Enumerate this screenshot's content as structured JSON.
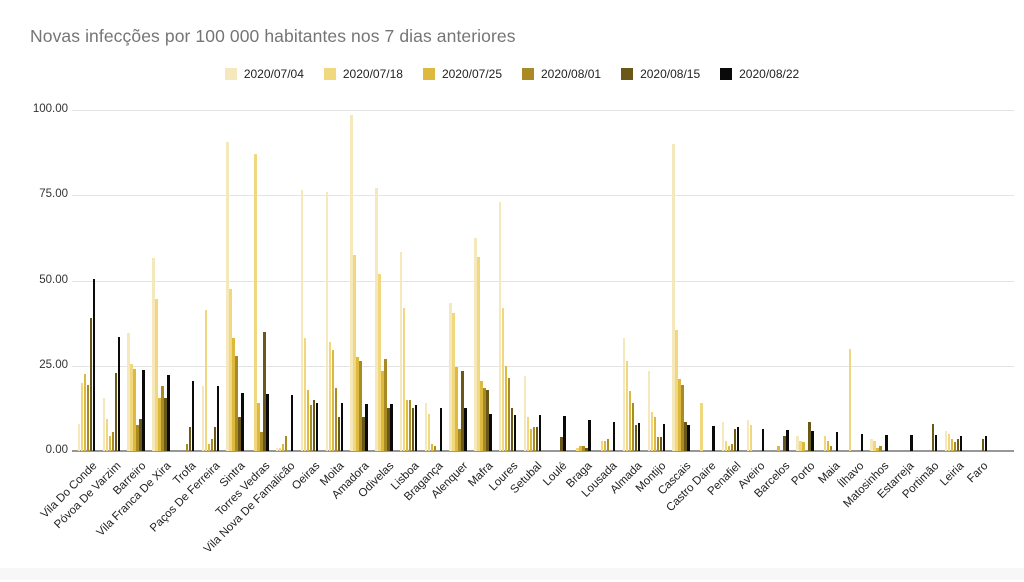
{
  "title": "Novas infecções por 100 000 habitantes nos 7 dias anteriores",
  "y_axis": {
    "ticks": [
      "0.00",
      "25.00",
      "50.00",
      "75.00",
      "100.00"
    ],
    "tick_values": [
      0,
      25,
      50,
      75,
      100
    ]
  },
  "chart_data": {
    "type": "bar",
    "title": "Novas infecções por 100 000 habitantes nos 7 dias anteriores",
    "xlabel": "",
    "ylabel": "",
    "ylim": [
      0,
      100
    ],
    "grid": true,
    "legend_position": "top",
    "categories": [
      "Vila Do Conde",
      "Póvoa De Varzim",
      "Barreiro",
      "Vila Franca De Xira",
      "Trofa",
      "Paços De Ferreira",
      "Sintra",
      "Torres Vedras",
      "Vila Nova De Famalicão",
      "Oeiras",
      "Moita",
      "Amadora",
      "Odivelas",
      "Lisboa",
      "Bragança",
      "Alenquer",
      "Mafra",
      "Loures",
      "Setubal",
      "Loulé",
      "Braga",
      "Lousada",
      "Almada",
      "Montijo",
      "Cascais",
      "Castro Daire",
      "Penafiel",
      "Aveiro",
      "Barcelos",
      "Porto",
      "Maia",
      "Ílhavo",
      "Matosinhos",
      "Estarreja",
      "Portimão",
      "Leiria",
      "Faro"
    ],
    "series": [
      {
        "name": "2020/07/04",
        "color": "#f6e8bd",
        "values": [
          8,
          15.5,
          34.5,
          56.5,
          0,
          19,
          90.5,
          0,
          1,
          76.5,
          76,
          98.5,
          77,
          58.5,
          14,
          43.5,
          62.5,
          73,
          22,
          0,
          0,
          0,
          33,
          23.5,
          90,
          0,
          8.5,
          9,
          0,
          4.5,
          0,
          0,
          3.5,
          0,
          0,
          6,
          0
        ]
      },
      {
        "name": "2020/07/18",
        "color": "#f1d87f",
        "values": [
          20,
          9.5,
          25.5,
          44.5,
          0,
          41.5,
          47.5,
          87,
          1,
          33,
          32,
          57.5,
          52,
          42,
          11,
          40.5,
          57,
          42,
          10,
          0,
          1,
          3,
          26.5,
          11.5,
          35.5,
          14,
          3,
          7.5,
          0,
          3,
          4.5,
          30,
          3,
          0,
          0,
          5,
          0
        ]
      },
      {
        "name": "2020/07/25",
        "color": "#ddb93f",
        "values": [
          22.5,
          4.5,
          24,
          15.5,
          0,
          2,
          33,
          14,
          2,
          18,
          29.5,
          27.5,
          23.5,
          15,
          2,
          24.5,
          20.5,
          25,
          6.5,
          0,
          1.5,
          3,
          17.5,
          10,
          21,
          0,
          1.5,
          0,
          1.5,
          2.5,
          3,
          0,
          1,
          0,
          0,
          3.5,
          0
        ]
      },
      {
        "name": "2020/08/01",
        "color": "#a98b25",
        "values": [
          19.5,
          5.5,
          7.5,
          19,
          2,
          3.5,
          28,
          5.5,
          4.5,
          13.5,
          18.5,
          26.5,
          27,
          15,
          1.5,
          6.5,
          18.5,
          21.5,
          7,
          0,
          1.5,
          3.5,
          14,
          4,
          19.5,
          0,
          2,
          0,
          0,
          0,
          1.5,
          0,
          1.5,
          0,
          0,
          2.5,
          0
        ]
      },
      {
        "name": "2020/08/15",
        "color": "#695818",
        "values": [
          39,
          23,
          9.5,
          15.5,
          7,
          7,
          10,
          35,
          0,
          15,
          10,
          10,
          12.5,
          12.5,
          0,
          23.5,
          18,
          12.5,
          7,
          4,
          1,
          0,
          7.5,
          4,
          8.5,
          0,
          6.5,
          0,
          4.5,
          8.5,
          0,
          0,
          0,
          0,
          8,
          3.5,
          3.5
        ]
      },
      {
        "name": "2020/08/22",
        "color": "#0a0a0a",
        "values": [
          50.5,
          33.4,
          23.8,
          22.3,
          20.5,
          19,
          16.9,
          16.6,
          16.4,
          14.2,
          14.1,
          13.9,
          13.8,
          13.6,
          12.6,
          12.5,
          11,
          10.6,
          10.5,
          10.4,
          9,
          8.5,
          8.2,
          7.9,
          7.6,
          7.2,
          7,
          6.5,
          6.3,
          6,
          5.5,
          4.9,
          4.8,
          4.7,
          4.6,
          4.5,
          4.4
        ]
      }
    ]
  }
}
